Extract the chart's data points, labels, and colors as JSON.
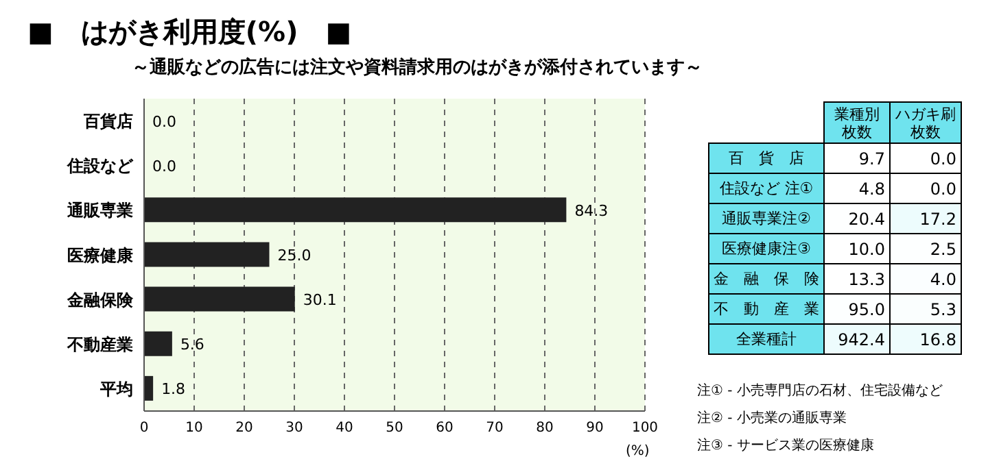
{
  "chart_data": [
    {
      "type": "bar",
      "orientation": "horizontal",
      "title": "■　はがき利用度(%)　■",
      "subtitle": "～通販などの広告には注文や資料請求用のはがきが添付されています～",
      "categories": [
        "百貨店",
        "住設など",
        "通販専業",
        "医療健康",
        "金融保険",
        "不動産業",
        "平均"
      ],
      "values": [
        0,
        0,
        84.3,
        25.0,
        30.1,
        5.6,
        1.8
      ],
      "value_labels": [
        "0.0",
        "0.0",
        "84.3",
        "25.0",
        "30.1",
        "5.6",
        "1.8"
      ],
      "color": "#222222",
      "xlim": [
        0,
        100
      ],
      "xticks": [
        0,
        10,
        20,
        30,
        40,
        50,
        60,
        70,
        80,
        90,
        100
      ],
      "xlabel": "(%)",
      "grid": "x"
    },
    {
      "type": "heatmap",
      "categories": [
        "業種別枚数",
        "ハガキ刷枚数"
      ],
      "y_categories": [
        "百　貨　店",
        "住設など 注①",
        "通販専業注②",
        "医療健康注③",
        "金　融　保　険",
        "不　動　産　業",
        "全業種計"
      ],
      "cells": [
        [
          9.7,
          0
        ],
        [
          4.8,
          0
        ],
        [
          20.4,
          17.2
        ],
        [
          10,
          2.5
        ],
        [
          13.3,
          4
        ],
        [
          95,
          5.3
        ],
        [
          942.4,
          16.8
        ]
      ],
      "cell_labels": [
        [
          "9.7",
          "0.0"
        ],
        [
          "4.8",
          "0.0"
        ],
        [
          "20.4",
          "17.2"
        ],
        [
          "10.0",
          "2.5"
        ],
        [
          "13.3",
          "4.0"
        ],
        [
          "95.0",
          "5.3"
        ],
        [
          "942.4",
          "16.8"
        ]
      ],
      "annotations": [
        "注① - 小売専門店の石材、住宅設備など",
        "注② - 小売業の通販専業",
        "注③ - サービス業の医療健康"
      ]
    }
  ]
}
